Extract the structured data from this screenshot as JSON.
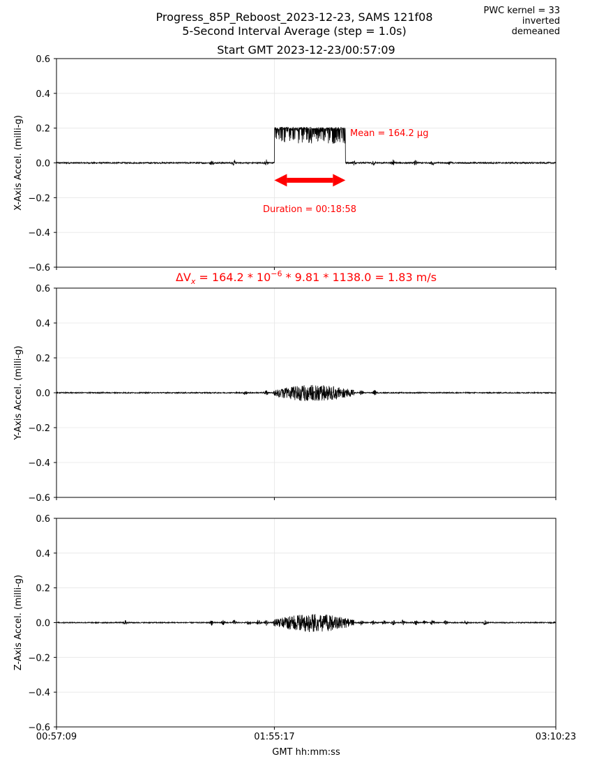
{
  "header": {
    "title_line1": "Progress_85P_Reboost_2023-12-23, SAMS 121f08",
    "title_line2": "5-Second Interval Average (step = 1.0s)",
    "start_label": "Start GMT 2023-12-23/00:57:09",
    "note_lines": [
      "PWC kernel = 33",
      "inverted",
      "demeaned"
    ]
  },
  "chart_data": {
    "type": "line",
    "x_unit": "GMT hh:mm:ss",
    "xlabel": "GMT hh:mm:ss",
    "x_range": [
      "00:57:09",
      "03:10:23"
    ],
    "x_ticks": [
      {
        "label": "00:57:09",
        "time": "00:57:09"
      },
      {
        "label": "01:55:17",
        "time": "01:55:17"
      },
      {
        "label": "03:10:23",
        "time": "03:10:23"
      }
    ],
    "grid": true,
    "panels": [
      {
        "name": "x",
        "ylabel": "X-Axis Accel. (milli-g)",
        "ylim": [
          -0.6,
          0.6
        ],
        "y_ticks": [
          "0.6",
          "0.4",
          "0.2",
          "0.0",
          "−0.2",
          "−0.4",
          "−0.6"
        ],
        "y_tick_values": [
          0.6,
          0.4,
          0.2,
          0.0,
          -0.2,
          -0.4,
          -0.6
        ],
        "signal": {
          "baseline": 0.0,
          "plateau_start": "01:55:17",
          "plateau_end": "02:14:15",
          "plateau_mean": 0.1642,
          "plateau_min": 0.11,
          "plateau_max": 0.205,
          "noise_outside": 0.004,
          "transient_times": [
            "01:38:30",
            "01:44:30",
            "01:53:10",
            "02:16:40",
            "02:21:40",
            "02:27:00",
            "02:33:00",
            "02:37:30",
            "02:42:00"
          ]
        },
        "annotations": {
          "mean_label": "Mean = 164.2 μg",
          "duration_label": "Duration = 00:18:58",
          "arrow_start": "01:55:17",
          "arrow_end": "02:14:15",
          "arrow_y": -0.1
        }
      },
      {
        "name": "y",
        "ylabel": "Y-Axis Accel. (milli-g)",
        "ylim": [
          -0.6,
          0.6
        ],
        "y_ticks": [
          "0.6",
          "0.4",
          "0.2",
          "0.0",
          "−0.2",
          "−0.4",
          "−0.6"
        ],
        "y_tick_values": [
          0.6,
          0.4,
          0.2,
          0.0,
          -0.2,
          -0.4,
          -0.6
        ],
        "signal": {
          "baseline": 0.0,
          "burst_start": "01:55:00",
          "burst_end": "02:16:30",
          "burst_min": -0.05,
          "burst_max": 0.045,
          "noise_outside": 0.003,
          "transient_times": [
            "01:47:30",
            "01:53:10",
            "02:18:30",
            "02:22:00"
          ]
        }
      },
      {
        "name": "z",
        "ylabel": "Z-Axis Accel. (milli-g)",
        "ylim": [
          -0.6,
          0.6
        ],
        "y_ticks": [
          "0.6",
          "0.4",
          "0.2",
          "0.0",
          "−0.2",
          "−0.4",
          "−0.6"
        ],
        "y_tick_values": [
          0.6,
          0.4,
          0.2,
          0.0,
          -0.2,
          -0.4,
          -0.6
        ],
        "signal": {
          "baseline": 0.0,
          "burst_start": "01:55:00",
          "burst_end": "02:16:30",
          "burst_min": -0.055,
          "burst_max": 0.05,
          "noise_outside": 0.003,
          "transient_times": [
            "01:15:30",
            "01:38:30",
            "01:41:40",
            "01:44:30",
            "01:48:30",
            "01:51:00",
            "01:53:10",
            "02:18:30",
            "02:21:40",
            "02:24:30",
            "02:27:00",
            "02:29:40",
            "02:33:00",
            "02:35:30",
            "02:37:30",
            "02:41:00",
            "02:46:20",
            "02:51:30"
          ]
        }
      }
    ],
    "delta_v_formula": {
      "prefix": "ΔV",
      "subscript": "x",
      "part1": " = 164.2 * 10",
      "exponent": "−6",
      "part2": " * 9.81 * 1138.0 = 1.83 m/s"
    }
  },
  "colors": {
    "line": "#000000",
    "annotation": "#ff0000",
    "grid": "#e6e6e6"
  }
}
